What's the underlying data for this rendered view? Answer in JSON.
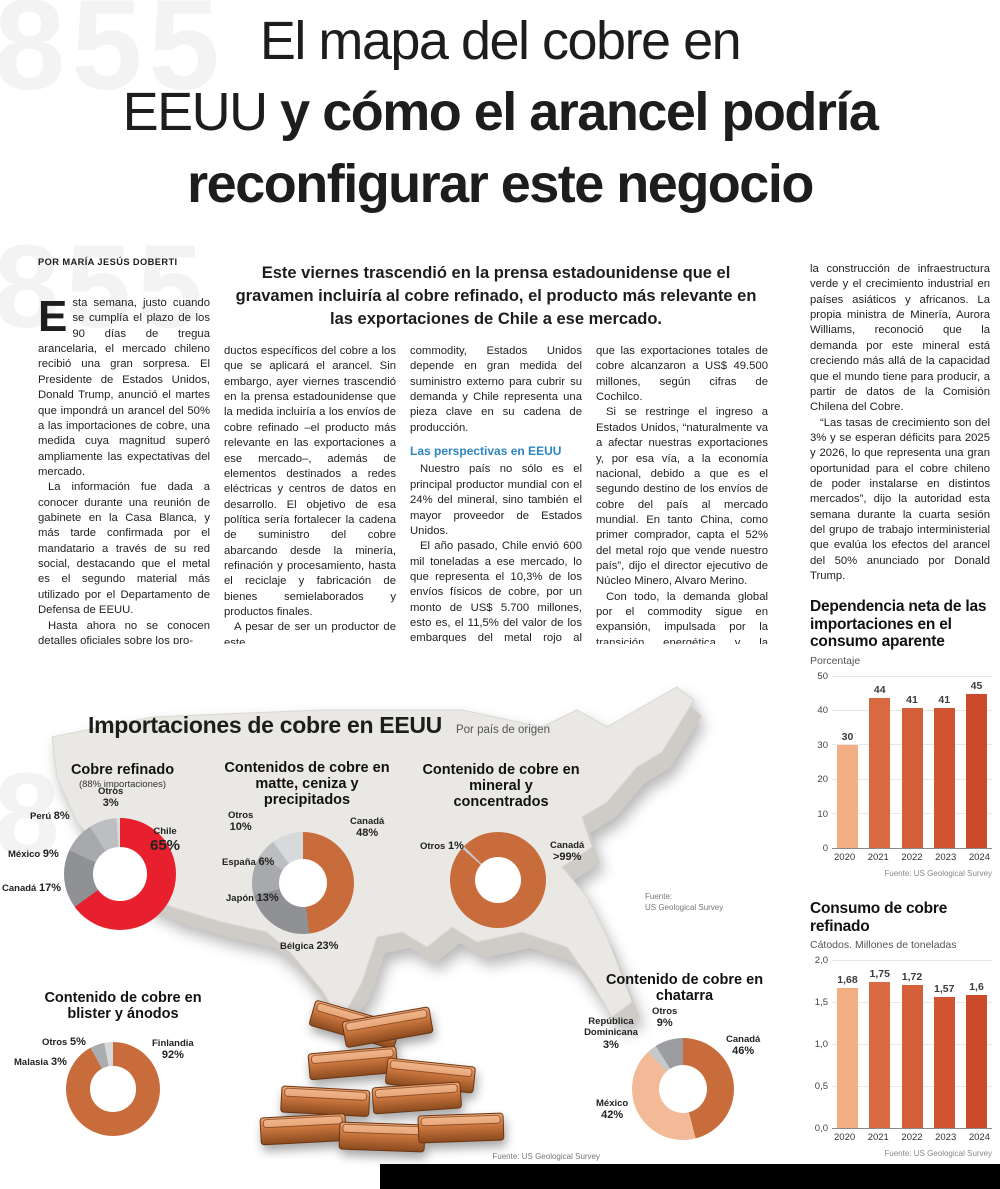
{
  "page": {
    "watermarks": [
      "855",
      "855",
      "8"
    ],
    "bottom_bar_color": "#000000",
    "accent_red": "#e8202e",
    "accent_copper": "#c96c3c",
    "subhead_blue": "#2e86c1"
  },
  "headline": {
    "line1": "El mapa del cobre en",
    "line2_light": "EEUU ",
    "line2_bold": "y cómo el arancel podría",
    "line3_bold": "reconfigurar este negocio"
  },
  "byline": "POR MARÍA JESÚS DOBERTI",
  "lead": "Este viernes trascendió en la prensa estadounidense que el gravamen incluiría al cobre refinado, el producto más relevante en las exportaciones de Chile a ese mercado.",
  "article": {
    "drop_cap": "E",
    "col1": {
      "p1": "sta semana, justo cuando se cumplía el plazo de los 90 días de tregua arancelaria, el mercado chileno recibió una gran sorpresa. El Presidente de Estados Unidos, Donald Trump, anunció el martes que impondrá un arancel del 50% a las importaciones de cobre, una medida cuya magnitud superó ampliamente las expectativas del mercado.",
      "p2": "La información fue dada a conocer durante una reunión de gabinete en la Casa Blanca, y más tarde confirmada por el mandatario a través de su red social, destacando que el metal es el segundo material más utilizado por el Departamento de Defensa de EEUU.",
      "p3": "Hasta ahora no se conocen detalles oficiales sobre los pro-"
    },
    "col2": {
      "p1": "ductos específicos del cobre a los que se aplicará el arancel. Sin embargo, ayer viernes trascendió en la prensa estadounidense que la medida incluiría a los envíos de cobre refinado –el producto más relevante en las exportaciones a ese mercado–, además de elementos destinados a redes eléctricas y centros de datos en desarrollo. El objetivo de esa política sería fortalecer la cadena de suministro del cobre abarcando desde la minería, refinación y procesamiento, hasta el reciclaje y fabricación de bienes semielaborados y productos finales.",
      "p2": "A pesar de ser un productor de este"
    },
    "col3": {
      "p1": "commodity, Estados Unidos depende en gran medida del suministro externo para cubrir su demanda y Chile representa una pieza clave en su cadena de producción.",
      "subhead": "Las perspectivas en EEUU",
      "p2": "Nuestro país no sólo es el principal productor mundial con el 24% del mineral, sino también el mayor proveedor de Estados Unidos.",
      "p3": "El año pasado, Chile envió 600 mil toneladas a ese mercado, lo que representa el 10,3% de los envíos físicos de cobre, por un monto de US$ 5.700 millones, esto es, el 11,5% del valor de los embarques del metal rojo al mundo, en tanto"
    },
    "col4": {
      "p1": "que las exportaciones totales de cobre alcanzaron a US$ 49.500 millones, según cifras de Cochilco.",
      "p2": "Si se restringe el ingreso a Estados Unidos, “naturalmente va a afectar nuestras exportaciones y, por esa vía, a la economía nacional, debido a que es el segundo destino de los envíos de cobre del país al mercado mundial. En tanto China, como primer comprador, capta el 52% del metal rojo que vende nuestro país”, dijo el director ejecutivo de Núcleo Minero, Alvaro Merino.",
      "p3": "Con todo, la demanda global por el commodity sigue en expansión, impulsada por la transición energética y la electrificación del transporte,"
    },
    "col5": {
      "p1": "la construcción de infraestructura verde y el crecimiento industrial en países asiáticos y africanos. La propia ministra de Minería, Aurora Williams, reconoció que la demanda por este mineral está creciendo más allá de la capacidad que el mundo tiene para producir, a partir de datos de la Comisión Chilena del Cobre.",
      "p2": "“Las tasas de crecimiento son del 3% y se esperan déficits para 2025 y 2026, lo que representa una gran oportunidad para el cobre chileno de poder instalarse en distintos mercados”, dijo la autoridad esta semana durante la cuarta sesión del grupo de trabajo interministerial que evalúa los efectos del arancel del 50% anunciado por Donald Trump."
    }
  },
  "infographic": {
    "title": "Importaciones de cobre en EEUU",
    "subtitle": "Por país de origen",
    "source_mid": "Fuente:\nUS Geological Survey",
    "source_bottom": "Fuente: US Geological Survey"
  },
  "chart_data": [
    {
      "type": "pie",
      "title": "Cobre refinado",
      "subtitle": "(88% importaciones)",
      "start_deg": 0,
      "slices": [
        {
          "label": "Chile",
          "pct": "65%",
          "value": 65,
          "color": "#e8202e"
        },
        {
          "label": "Canadá",
          "pct": "17%",
          "value": 17,
          "color": "#8f9194"
        },
        {
          "label": "México",
          "pct": "9%",
          "value": 9,
          "color": "#a7a9ac"
        },
        {
          "label": "Perú",
          "pct": "8%",
          "value": 8,
          "color": "#bcbec0"
        },
        {
          "label": "Otros",
          "pct": "3%",
          "value": 3,
          "color": "#d8d9da"
        }
      ]
    },
    {
      "type": "pie",
      "title": "Contenidos de cobre en matte, ceniza y precipitados",
      "start_deg": 0,
      "slices": [
        {
          "label": "Canadá",
          "pct": "48%",
          "value": 48,
          "color": "#c96c3c"
        },
        {
          "label": "Bélgica",
          "pct": "23%",
          "value": 23,
          "color": "#8f9194"
        },
        {
          "label": "Japón",
          "pct": "13%",
          "value": 13,
          "color": "#a7a9ac"
        },
        {
          "label": "España",
          "pct": "6%",
          "value": 6,
          "color": "#bcbec0"
        },
        {
          "label": "Otros",
          "pct": "10%",
          "value": 10,
          "color": "#d8d9da"
        }
      ]
    },
    {
      "type": "pie",
      "title": "Contenido de cobre en mineral y concentrados",
      "start_deg": -45,
      "slices": [
        {
          "label": "Canadá",
          "pct": ">99%",
          "value": 99,
          "color": "#c96c3c"
        },
        {
          "label": "Otros",
          "pct": "1%",
          "value": 1,
          "color": "#c6c8ca"
        }
      ]
    },
    {
      "type": "pie",
      "title": "Contenido de cobre en blister y ánodos",
      "start_deg": 0,
      "slices": [
        {
          "label": "Finlandia",
          "pct": "92%",
          "value": 92,
          "color": "#c96c3c"
        },
        {
          "label": "Otros",
          "pct": "5%",
          "value": 5,
          "color": "#aaacae"
        },
        {
          "label": "Malasia",
          "pct": "3%",
          "value": 3,
          "color": "#d8d9da"
        }
      ]
    },
    {
      "type": "pie",
      "title": "Contenido de cobre en chatarra",
      "start_deg": 0,
      "slices": [
        {
          "label": "Canadá",
          "pct": "46%",
          "value": 46,
          "color": "#c96c3c"
        },
        {
          "label": "México",
          "pct": "42%",
          "value": 42,
          "color": "#f3ba97"
        },
        {
          "label": "República Dominicana",
          "pct": "3%",
          "value": 3,
          "color": "#c6c8ca"
        },
        {
          "label": "Otros",
          "pct": "9%",
          "value": 9,
          "color": "#9b9da0"
        }
      ]
    },
    {
      "type": "bar",
      "title": "Dependencia neta de las importaciones en el consumo aparente",
      "unit_label": "Porcentaje",
      "categories": [
        "2020",
        "2021",
        "2022",
        "2023",
        "2024"
      ],
      "values": [
        30,
        44,
        41,
        41,
        45
      ],
      "value_labels": [
        "30",
        "44",
        "41",
        "41",
        "45"
      ],
      "ylim": [
        0,
        50
      ],
      "yticks": [
        "0",
        "10",
        "20",
        "30",
        "40",
        "50"
      ],
      "bar_colors": [
        "#f3ae84",
        "#d96940",
        "#d55f38",
        "#d15431",
        "#cc4a2a"
      ],
      "source": "Fuente: US Geological Survey"
    },
    {
      "type": "bar",
      "title": "Consumo de cobre refinado",
      "unit_label": "Cátodos. Millones de toneladas",
      "categories": [
        "2020",
        "2021",
        "2022",
        "2023",
        "2024"
      ],
      "values": [
        1.68,
        1.75,
        1.72,
        1.57,
        1.6
      ],
      "value_labels": [
        "1,68",
        "1,75",
        "1,72",
        "1,57",
        "1,6"
      ],
      "ylim": [
        0,
        2
      ],
      "yticks": [
        "0,0",
        "0,5",
        "1,0",
        "1,5",
        "2,0"
      ],
      "bar_colors": [
        "#f3ae84",
        "#d96940",
        "#d55f38",
        "#d15431",
        "#cc4a2a"
      ],
      "source": "Fuente: US Geological Survey"
    }
  ]
}
